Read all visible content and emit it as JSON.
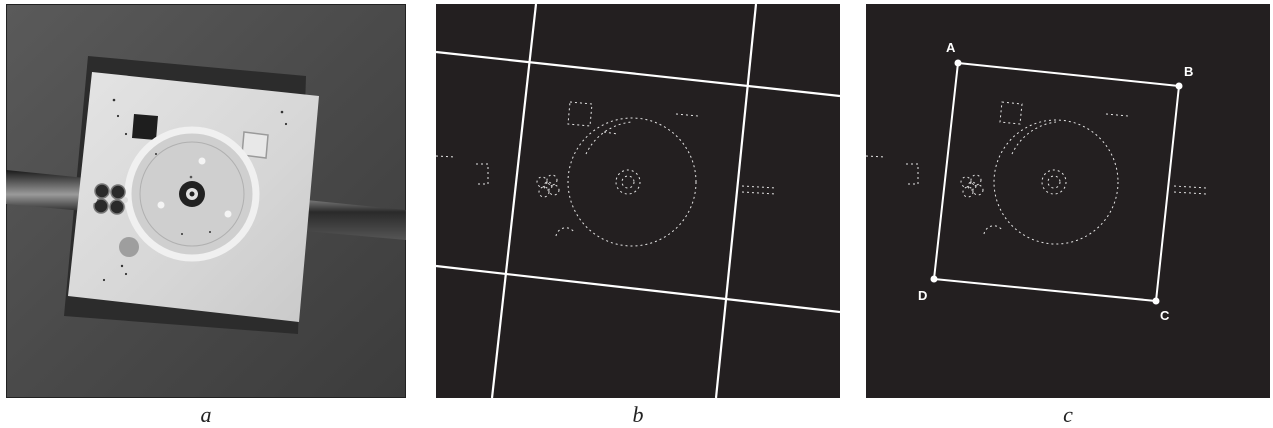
{
  "panels": [
    {
      "caption": "a"
    },
    {
      "caption": "b"
    },
    {
      "caption": "c"
    }
  ],
  "corner_labels": {
    "A": "A",
    "B": "B",
    "C": "C",
    "D": "D"
  },
  "colors": {
    "photo_background": "#474747",
    "edge_background": "#231f20",
    "edge_lines": "#ffffff",
    "plate": "#d9d9d9"
  }
}
